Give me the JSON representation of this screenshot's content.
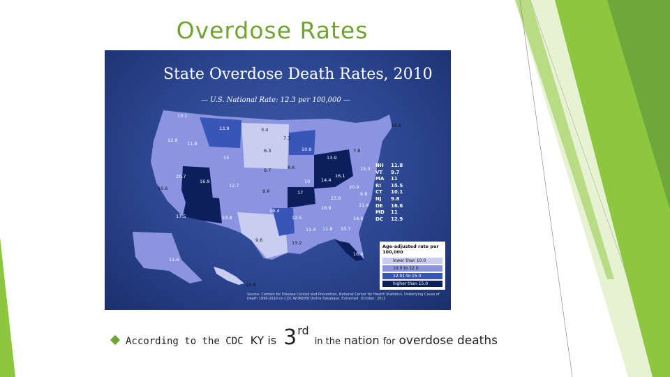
{
  "slide": {
    "title": "Overdose Rates",
    "colors": {
      "accent": "#6ea42f",
      "light_green": "#cfe8a4",
      "map_bg": "#2b4590"
    }
  },
  "map": {
    "title": "State Overdose Death Rates, 2010",
    "subtitle": "— U.S. National Rate: 12.3 per 100,000 —",
    "state_rates": [
      {
        "label": "13.1"
      },
      {
        "label": "12.9"
      },
      {
        "label": "11.8"
      },
      {
        "label": "13.9"
      },
      {
        "label": "3.4"
      },
      {
        "label": "7.3"
      },
      {
        "label": "6.3"
      },
      {
        "label": "15"
      },
      {
        "label": "10.9"
      },
      {
        "label": "10.4"
      },
      {
        "label": "7.8"
      },
      {
        "label": "13.9"
      },
      {
        "label": "20.7"
      },
      {
        "label": "16.9"
      },
      {
        "label": "12.7"
      },
      {
        "label": "6.7"
      },
      {
        "label": "8.6"
      },
      {
        "label": "10"
      },
      {
        "label": "14.4"
      },
      {
        "label": "16.1"
      },
      {
        "label": "15.3"
      },
      {
        "label": "20.9"
      },
      {
        "label": "10.6"
      },
      {
        "label": "9.6"
      },
      {
        "label": "17"
      },
      {
        "label": "23.6"
      },
      {
        "label": "6.8"
      },
      {
        "label": "19.4"
      },
      {
        "label": "16.9"
      },
      {
        "label": "11.4"
      },
      {
        "label": "17.5"
      },
      {
        "label": "23.8"
      },
      {
        "label": "12.5"
      },
      {
        "label": "11.4"
      },
      {
        "label": "11.8"
      },
      {
        "label": "10.7"
      },
      {
        "label": "14.6"
      },
      {
        "label": "9.6"
      },
      {
        "label": "13.2"
      },
      {
        "label": "16.4"
      },
      {
        "label": "11.6"
      },
      {
        "label": "10.9"
      }
    ],
    "northeast_table": [
      {
        "abbr": "NH",
        "rate": "11.8"
      },
      {
        "abbr": "VT",
        "rate": "9.7"
      },
      {
        "abbr": "MA",
        "rate": "11"
      },
      {
        "abbr": "RI",
        "rate": "15.5"
      },
      {
        "abbr": "CT",
        "rate": "10.1"
      },
      {
        "abbr": "NJ",
        "rate": "9.8"
      },
      {
        "abbr": "DE",
        "rate": "16.6"
      },
      {
        "abbr": "MD",
        "rate": "11"
      },
      {
        "abbr": "DC",
        "rate": "12.9"
      }
    ],
    "legend": {
      "title": "Age-adjusted rate per 100,000",
      "items": [
        {
          "label": "lower than 10.0",
          "color": "#c9cdf0"
        },
        {
          "label": "10.0 to 12.0",
          "color": "#8a94e0"
        },
        {
          "label": "12.01 to 15.0",
          "color": "#3a55b8"
        },
        {
          "label": "higher than 15.0",
          "color": "#0c1f5c"
        }
      ]
    },
    "source": "Source: Centers for Disease Control and Prevention, National Center for Health Statistics. Underlying Cause of Death 1999-2010 on CDC WONDER Online Database. Extracted: October, 2012"
  },
  "caption": {
    "part1": "According to the CDC",
    "part2": "KY is",
    "part3": "3",
    "part4": "rd",
    "part5": "in the",
    "part6": "nation",
    "part7": "for",
    "part8": "overdose deaths"
  }
}
